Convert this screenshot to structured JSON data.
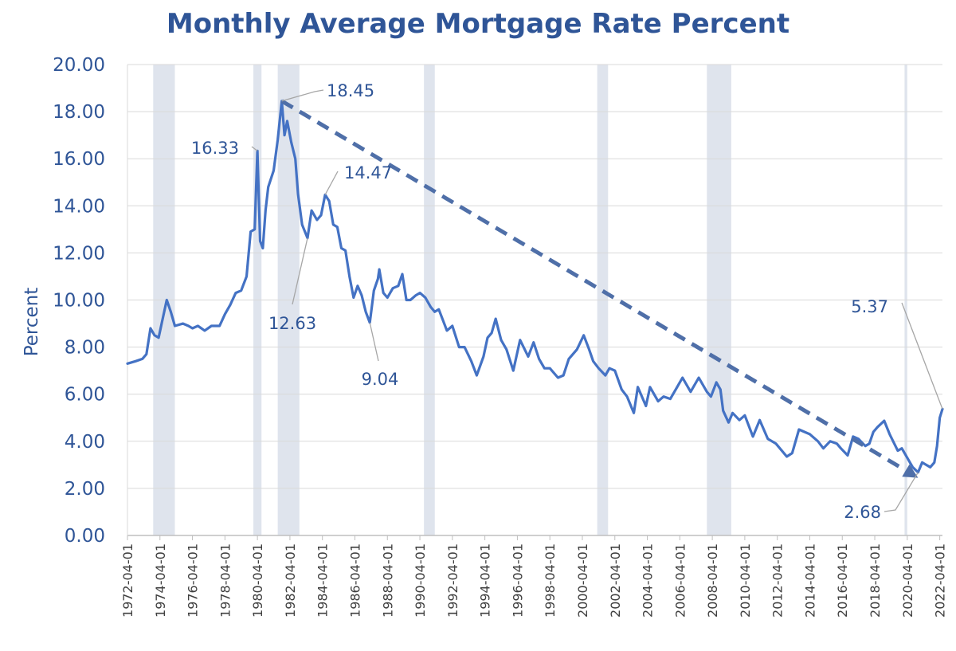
{
  "chart_data": {
    "type": "line",
    "title": "Monthly Average Mortgage Rate Percent",
    "xlabel": "",
    "ylabel": "Percent",
    "ylim": [
      0,
      20
    ],
    "y_ticks": [
      "0.00",
      "2.00",
      "4.00",
      "6.00",
      "8.00",
      "10.00",
      "12.00",
      "14.00",
      "16.00",
      "18.00",
      "20.00"
    ],
    "x_range": [
      "1972-04-01",
      "2022-06-01"
    ],
    "x_ticks": [
      "1972-04-01",
      "1974-04-01",
      "1976-04-01",
      "1978-04-01",
      "1980-04-01",
      "1982-04-01",
      "1984-04-01",
      "1986-04-01",
      "1988-04-01",
      "1990-04-01",
      "1992-04-01",
      "1994-04-01",
      "1996-04-01",
      "1998-04-01",
      "2000-04-01",
      "2002-04-01",
      "2004-04-01",
      "2006-04-01",
      "2008-04-01",
      "2010-04-01",
      "2012-04-01",
      "2014-04-01",
      "2016-04-01",
      "2018-04-01",
      "2020-04-01",
      "2022-04-01"
    ],
    "recessions": [
      [
        "1973-11-01",
        "1975-03-01"
      ],
      [
        "1980-01-01",
        "1980-07-01"
      ],
      [
        "1981-07-01",
        "1982-11-01"
      ],
      [
        "1990-07-01",
        "1991-03-01"
      ],
      [
        "2001-03-01",
        "2001-11-01"
      ],
      [
        "2007-12-01",
        "2009-06-01"
      ],
      [
        "2020-02-01",
        "2020-04-01"
      ]
    ],
    "series": [
      {
        "name": "Mortgage Rate",
        "points": [
          [
            "1972-04-01",
            7.3
          ],
          [
            "1972-10-01",
            7.4
          ],
          [
            "1973-03-01",
            7.5
          ],
          [
            "1973-06-01",
            7.7
          ],
          [
            "1973-09-01",
            8.8
          ],
          [
            "1973-12-01",
            8.5
          ],
          [
            "1974-03-01",
            8.4
          ],
          [
            "1974-06-01",
            9.2
          ],
          [
            "1974-09-01",
            10.0
          ],
          [
            "1974-12-01",
            9.5
          ],
          [
            "1975-03-01",
            8.9
          ],
          [
            "1975-09-01",
            9.0
          ],
          [
            "1976-01-01",
            8.9
          ],
          [
            "1976-04-01",
            8.8
          ],
          [
            "1976-08-01",
            8.9
          ],
          [
            "1977-01-01",
            8.7
          ],
          [
            "1977-06-01",
            8.9
          ],
          [
            "1977-12-01",
            8.9
          ],
          [
            "1978-04-01",
            9.4
          ],
          [
            "1978-08-01",
            9.8
          ],
          [
            "1978-12-01",
            10.3
          ],
          [
            "1979-04-01",
            10.4
          ],
          [
            "1979-08-01",
            11.0
          ],
          [
            "1979-11-01",
            12.9
          ],
          [
            "1980-02-01",
            13.0
          ],
          [
            "1980-04-01",
            16.33
          ],
          [
            "1980-06-01",
            12.5
          ],
          [
            "1980-08-01",
            12.2
          ],
          [
            "1980-10-01",
            13.8
          ],
          [
            "1980-12-01",
            14.8
          ],
          [
            "1981-04-01",
            15.5
          ],
          [
            "1981-07-01",
            16.8
          ],
          [
            "1981-10-01",
            18.45
          ],
          [
            "1981-12-01",
            17.0
          ],
          [
            "1982-02-01",
            17.6
          ],
          [
            "1982-05-01",
            16.7
          ],
          [
            "1982-08-01",
            16.0
          ],
          [
            "1982-10-01",
            14.5
          ],
          [
            "1983-01-01",
            13.2
          ],
          [
            "1983-05-01",
            12.63
          ],
          [
            "1983-08-01",
            13.8
          ],
          [
            "1983-12-01",
            13.4
          ],
          [
            "1984-03-01",
            13.6
          ],
          [
            "1984-06-01",
            14.47
          ],
          [
            "1984-09-01",
            14.2
          ],
          [
            "1984-12-01",
            13.2
          ],
          [
            "1985-03-01",
            13.1
          ],
          [
            "1985-06-01",
            12.2
          ],
          [
            "1985-09-01",
            12.1
          ],
          [
            "1985-12-01",
            11.0
          ],
          [
            "1986-03-01",
            10.1
          ],
          [
            "1986-06-01",
            10.6
          ],
          [
            "1986-09-01",
            10.2
          ],
          [
            "1986-12-01",
            9.5
          ],
          [
            "1987-03-01",
            9.04
          ],
          [
            "1987-06-01",
            10.4
          ],
          [
            "1987-09-01",
            10.9
          ],
          [
            "1987-10-01",
            11.3
          ],
          [
            "1988-01-01",
            10.3
          ],
          [
            "1988-04-01",
            10.1
          ],
          [
            "1988-08-01",
            10.5
          ],
          [
            "1988-12-01",
            10.6
          ],
          [
            "1989-03-01",
            11.1
          ],
          [
            "1989-06-01",
            10.0
          ],
          [
            "1989-09-01",
            10.0
          ],
          [
            "1990-01-01",
            10.2
          ],
          [
            "1990-04-01",
            10.3
          ],
          [
            "1990-08-01",
            10.1
          ],
          [
            "1990-12-01",
            9.7
          ],
          [
            "1991-03-01",
            9.5
          ],
          [
            "1991-06-01",
            9.6
          ],
          [
            "1991-12-01",
            8.7
          ],
          [
            "1992-04-01",
            8.9
          ],
          [
            "1992-09-01",
            8.0
          ],
          [
            "1993-01-01",
            8.0
          ],
          [
            "1993-06-01",
            7.4
          ],
          [
            "1993-10-01",
            6.8
          ],
          [
            "1994-03-01",
            7.6
          ],
          [
            "1994-06-01",
            8.4
          ],
          [
            "1994-09-01",
            8.6
          ],
          [
            "1994-12-01",
            9.2
          ],
          [
            "1995-04-01",
            8.3
          ],
          [
            "1995-08-01",
            7.9
          ],
          [
            "1996-01-01",
            7.0
          ],
          [
            "1996-06-01",
            8.3
          ],
          [
            "1996-12-01",
            7.6
          ],
          [
            "1997-04-01",
            8.2
          ],
          [
            "1997-08-01",
            7.5
          ],
          [
            "1997-12-01",
            7.1
          ],
          [
            "1998-04-01",
            7.1
          ],
          [
            "1998-10-01",
            6.7
          ],
          [
            "1999-02-01",
            6.8
          ],
          [
            "1999-06-01",
            7.5
          ],
          [
            "1999-12-01",
            7.9
          ],
          [
            "2000-05-01",
            8.5
          ],
          [
            "2000-09-01",
            7.9
          ],
          [
            "2000-12-01",
            7.4
          ],
          [
            "2001-04-01",
            7.1
          ],
          [
            "2001-09-01",
            6.8
          ],
          [
            "2001-12-01",
            7.1
          ],
          [
            "2002-04-01",
            7.0
          ],
          [
            "2002-09-01",
            6.2
          ],
          [
            "2003-01-01",
            5.9
          ],
          [
            "2003-06-01",
            5.2
          ],
          [
            "2003-09-01",
            6.3
          ],
          [
            "2004-03-01",
            5.5
          ],
          [
            "2004-06-01",
            6.3
          ],
          [
            "2004-12-01",
            5.7
          ],
          [
            "2005-04-01",
            5.9
          ],
          [
            "2005-09-01",
            5.8
          ],
          [
            "2006-01-01",
            6.2
          ],
          [
            "2006-06-01",
            6.7
          ],
          [
            "2006-12-01",
            6.1
          ],
          [
            "2007-06-01",
            6.7
          ],
          [
            "2007-12-01",
            6.1
          ],
          [
            "2008-03-01",
            5.9
          ],
          [
            "2008-07-01",
            6.5
          ],
          [
            "2008-10-01",
            6.2
          ],
          [
            "2008-12-01",
            5.3
          ],
          [
            "2009-04-01",
            4.8
          ],
          [
            "2009-07-01",
            5.2
          ],
          [
            "2009-12-01",
            4.9
          ],
          [
            "2010-04-01",
            5.1
          ],
          [
            "2010-10-01",
            4.2
          ],
          [
            "2011-03-01",
            4.9
          ],
          [
            "2011-09-01",
            4.1
          ],
          [
            "2012-03-01",
            3.9
          ],
          [
            "2012-11-01",
            3.35
          ],
          [
            "2013-03-01",
            3.5
          ],
          [
            "2013-08-01",
            4.5
          ],
          [
            "2013-12-01",
            4.4
          ],
          [
            "2014-04-01",
            4.3
          ],
          [
            "2014-10-01",
            4.0
          ],
          [
            "2015-02-01",
            3.7
          ],
          [
            "2015-07-01",
            4.0
          ],
          [
            "2015-12-01",
            3.9
          ],
          [
            "2016-03-01",
            3.7
          ],
          [
            "2016-08-01",
            3.4
          ],
          [
            "2016-12-01",
            4.2
          ],
          [
            "2017-04-01",
            4.1
          ],
          [
            "2017-09-01",
            3.8
          ],
          [
            "2017-12-01",
            3.9
          ],
          [
            "2018-03-01",
            4.4
          ],
          [
            "2018-06-01",
            4.6
          ],
          [
            "2018-11-01",
            4.87
          ],
          [
            "2019-03-01",
            4.3
          ],
          [
            "2019-09-01",
            3.6
          ],
          [
            "2019-12-01",
            3.7
          ],
          [
            "2020-04-01",
            3.3
          ],
          [
            "2020-08-01",
            2.9
          ],
          [
            "2020-12-01",
            2.68
          ],
          [
            "2021-03-01",
            3.1
          ],
          [
            "2021-06-01",
            3.0
          ],
          [
            "2021-09-01",
            2.9
          ],
          [
            "2021-12-01",
            3.1
          ],
          [
            "2022-02-01",
            3.8
          ],
          [
            "2022-04-01",
            5.0
          ],
          [
            "2022-06-01",
            5.37
          ]
        ]
      }
    ],
    "trend_line": {
      "from": [
        "1981-10-01",
        18.45
      ],
      "to": [
        "2020-12-01",
        2.45
      ]
    },
    "annotations": [
      {
        "label": "18.45",
        "date": "1981-10-01",
        "value": 18.45
      },
      {
        "label": "16.33",
        "date": "1980-04-01",
        "value": 16.33
      },
      {
        "label": "14.47",
        "date": "1984-06-01",
        "value": 14.47
      },
      {
        "label": "12.63",
        "date": "1983-05-01",
        "value": 12.63
      },
      {
        "label": "9.04",
        "date": "1987-03-01",
        "value": 9.04
      },
      {
        "label": "5.37",
        "date": "2022-06-01",
        "value": 5.37
      },
      {
        "label": "2.68",
        "date": "2020-12-01",
        "value": 2.68
      }
    ]
  }
}
